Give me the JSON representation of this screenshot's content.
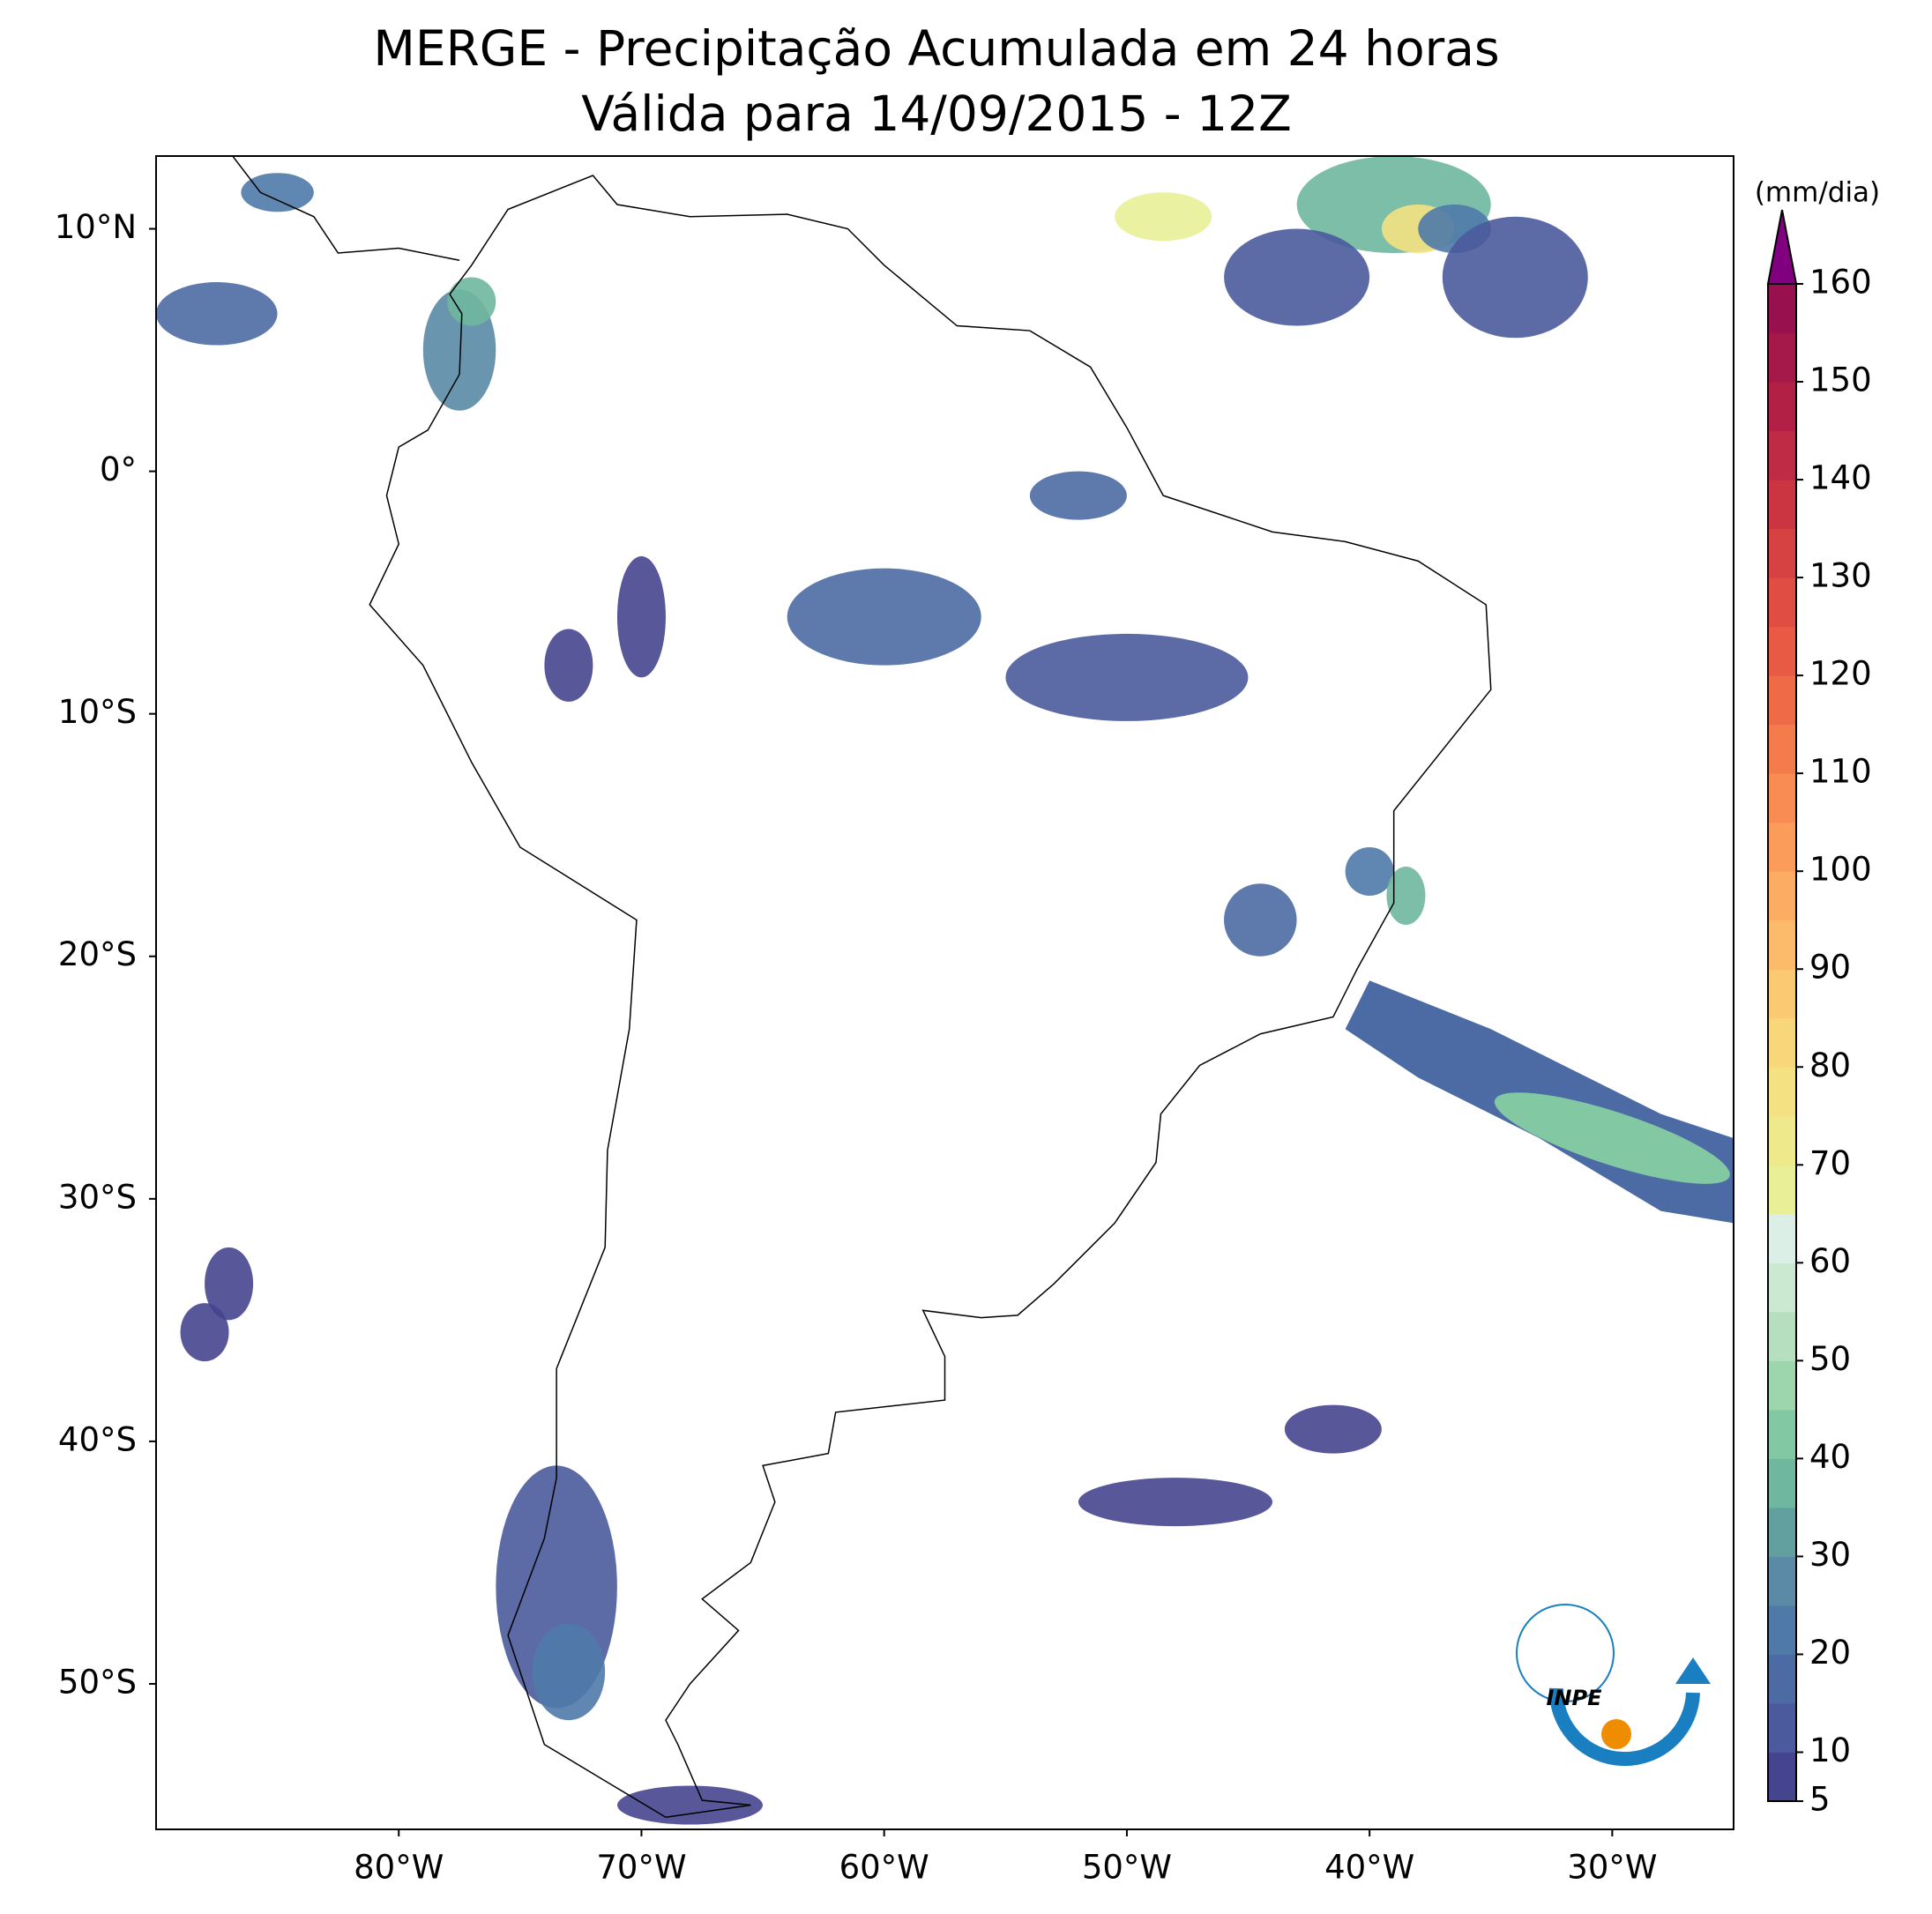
{
  "map": {
    "title": [
      "MERGE - Precipitação Acumulada em 24 horas",
      "Válida para 14/09/2015 - 12Z"
    ],
    "xlim": [
      -90,
      -25
    ],
    "ylim": [
      -56,
      13
    ],
    "xticks": [
      {
        "value": -80,
        "label": "80°W"
      },
      {
        "value": -70,
        "label": "70°W"
      },
      {
        "value": -60,
        "label": "60°W"
      },
      {
        "value": -50,
        "label": "50°W"
      },
      {
        "value": -40,
        "label": "40°W"
      },
      {
        "value": -30,
        "label": "30°W"
      }
    ],
    "yticks": [
      {
        "value": 10,
        "label": "10°N"
      },
      {
        "value": 0,
        "label": "0°"
      },
      {
        "value": -10,
        "label": "10°S"
      },
      {
        "value": -20,
        "label": "20°S"
      },
      {
        "value": -30,
        "label": "30°S"
      },
      {
        "value": -40,
        "label": "40°S"
      },
      {
        "value": -50,
        "label": "50°S"
      }
    ],
    "logo": "INPE",
    "colorbar": {
      "unit": "(mm/dia)",
      "levels": [
        5,
        10,
        15,
        20,
        25,
        30,
        35,
        40,
        45,
        50,
        55,
        60,
        65,
        70,
        75,
        80,
        85,
        90,
        95,
        100,
        105,
        110,
        115,
        120,
        125,
        130,
        135,
        140,
        145,
        150,
        155,
        160
      ],
      "colors": [
        "#45458f",
        "#4a5a9c",
        "#4c6aa3",
        "#4f7aa8",
        "#5a8aa5",
        "#62a09f",
        "#6fb79f",
        "#82c8a3",
        "#9dd5ad",
        "#b5dfbf",
        "#cbe8d0",
        "#dcefe6",
        "#e8ef96",
        "#eee98a",
        "#f4e182",
        "#f8d67a",
        "#fbc972",
        "#fcbb6a",
        "#fcac63",
        "#fb9c5b",
        "#f88c53",
        "#f47b4c",
        "#ef6a46",
        "#e85a43",
        "#e04d42",
        "#d64141",
        "#cb3542",
        "#bf2a44",
        "#b22046",
        "#a5184a",
        "#98104e"
      ],
      "extend_color": "#800080",
      "ticks": [
        5,
        10,
        20,
        30,
        40,
        50,
        60,
        70,
        80,
        90,
        100,
        110,
        120,
        130,
        140,
        150,
        160
      ]
    }
  }
}
